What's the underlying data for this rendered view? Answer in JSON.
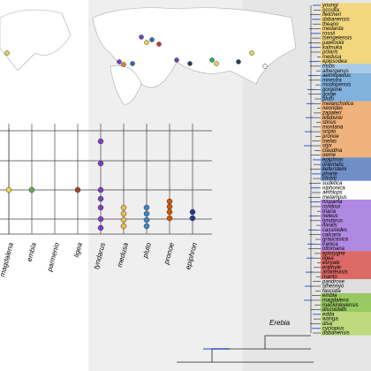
{
  "tree": {
    "genus_label": "Erebia",
    "tips": [
      "youngi",
      "occulta",
      "fletcheri",
      "dabanensis",
      "theano",
      "medarda",
      "rossii",
      "tsengelensis",
      "pawloskii",
      "kalmuka",
      "polaris",
      "medusa",
      "epipsodea",
      "tristis",
      "alberganus",
      "aethiopellus",
      "mnestra",
      "modopensis",
      "gorgone",
      "gorge",
      "pluto",
      "melancholica",
      "neoridas",
      "zapateri",
      "lefebvrei",
      "stirius",
      "montana",
      "scipio",
      "pronoe",
      "melas",
      "styx",
      "claudina",
      "oeme",
      "epiphron",
      "orientalis",
      "kefersteini",
      "pharte",
      "christi",
      "sudetica",
      "niphonica",
      "aethiops",
      "melampus",
      "hispania",
      "rondoui",
      "triaria",
      "neleus",
      "tyndarus",
      "nivalis",
      "cassioides",
      "calcaria",
      "graucasica",
      "iranica",
      "ottomana",
      "epistygne",
      "ligea",
      "euryale",
      "eriphyle",
      "ananeuisis",
      "manto",
      "pandrose",
      "sthennyo",
      "fasciata",
      "embla",
      "magdalena",
      "mackinleyensis",
      "discoidalis",
      "edda",
      "wanga",
      "disa",
      "cyclopius",
      "dabanensis"
    ]
  },
  "dot_plot": {
    "x_labels": [
      "magdalena",
      "embla",
      "parmenio",
      "ligea",
      "tyndarus",
      "medusa",
      "pluto",
      "pronoe",
      "epiphron"
    ]
  }
}
